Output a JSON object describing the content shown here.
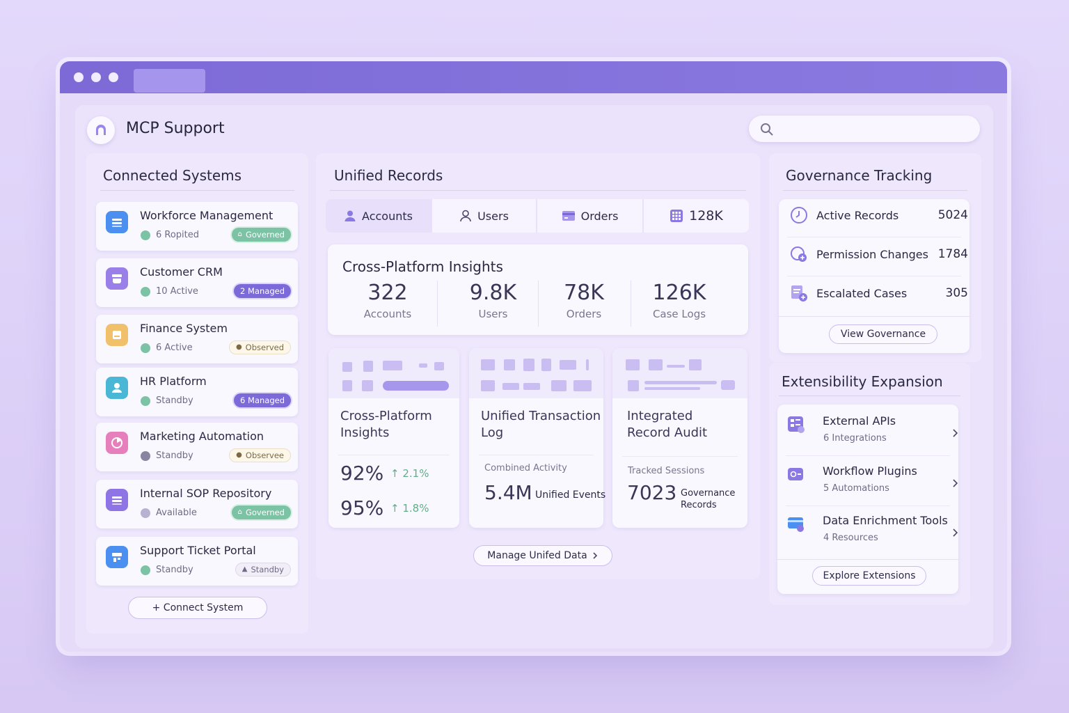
{
  "app": {
    "title": "MCP Support",
    "search_placeholder": ""
  },
  "connected": {
    "title": "Connected Systems",
    "systems": [
      {
        "name": "Workforce Management",
        "status": "6 Ropited",
        "badge": "Governed",
        "badge_type": "gov",
        "icon": "list-icon",
        "color": "#4b8ff0"
      },
      {
        "name": "Customer CRM",
        "status": "10 Active",
        "badge": "2  Managed",
        "badge_type": "man",
        "icon": "inbox-icon",
        "color": "#9b7fe8"
      },
      {
        "name": "Finance System",
        "status": "6 Active",
        "badge": "Observed",
        "badge_type": "obs",
        "icon": "document-icon",
        "color": "#f0c06a"
      },
      {
        "name": "HR Platform",
        "status": "Standby",
        "badge": "6  Managed",
        "badge_type": "man",
        "icon": "user-icon",
        "color": "#4ab7d6"
      },
      {
        "name": "Marketing Automation",
        "status": "Standby",
        "badge": "Observee",
        "badge_type": "obs",
        "icon": "chart-pie-icon",
        "color": "#e77fbd"
      },
      {
        "name": "Internal SOP Repository",
        "status": "Available",
        "badge": "Governed",
        "badge_type": "gov",
        "icon": "list-icon",
        "color": "#8f74e6"
      },
      {
        "name": "Support Ticket Portal",
        "status": "Standby",
        "badge": "Standby",
        "badge_type": "sta",
        "icon": "ticket-icon",
        "color": "#4b8ff0"
      }
    ],
    "connect_button": "+ Connect System"
  },
  "unified": {
    "title": "Unified Records",
    "tabs": [
      {
        "label": "Accounts",
        "icon": "user-filled-icon"
      },
      {
        "label": "Users",
        "icon": "user-outline-icon"
      },
      {
        "label": "Orders",
        "icon": "card-icon"
      },
      {
        "label": "128K",
        "icon": "grid-icon"
      }
    ],
    "insights": {
      "title": "Cross-Platform Insights",
      "metrics": [
        {
          "value": "322",
          "label": "Accounts"
        },
        {
          "value": "9.8K",
          "label": "Users"
        },
        {
          "value": "78K",
          "label": "Orders"
        },
        {
          "value": "126K",
          "label": "Case Logs"
        }
      ]
    },
    "cards": [
      {
        "title": "Cross-Platform\nInsights",
        "p1": "92%",
        "d1": "↑ 2.1%",
        "p2": "95%",
        "d2": "↑ 1.8%"
      },
      {
        "title": "Unified Transaction\nLog",
        "sub": "Combined Activity",
        "big": "5.4M",
        "unit": "Unified Events"
      },
      {
        "title": "Integrated\nRecord Audit",
        "sub": "Tracked Sessions",
        "big": "7023",
        "unit": "Governance\nRecords"
      }
    ],
    "manage_button": "Manage Unifed Data"
  },
  "governance": {
    "title": "Governance Tracking",
    "rows": [
      {
        "label": "Active Records",
        "value": "5024",
        "icon": "clock-icon"
      },
      {
        "label": "Permission Changes",
        "value": "1784",
        "icon": "shield-plus-icon"
      },
      {
        "label": "Escalated Cases",
        "value": "305",
        "icon": "case-plus-icon"
      }
    ],
    "button": "View Governance"
  },
  "extensibility": {
    "title": "Extensibility Expansion",
    "rows": [
      {
        "name": "External APIs",
        "sub": "6 Integrations",
        "icon": "api-grid-icon"
      },
      {
        "name": "Workflow Plugins",
        "sub": "5 Automations",
        "icon": "plugin-icon"
      },
      {
        "name": "Data Enrichment Tools",
        "sub": "4 Resources",
        "icon": "tools-icon"
      }
    ],
    "button": "Explore Extensions"
  },
  "colors": {
    "accent": "#7b6ad8",
    "titlebar": "#7d6ad6",
    "success": "#7cc2a4",
    "background": "#e3d9fb"
  }
}
